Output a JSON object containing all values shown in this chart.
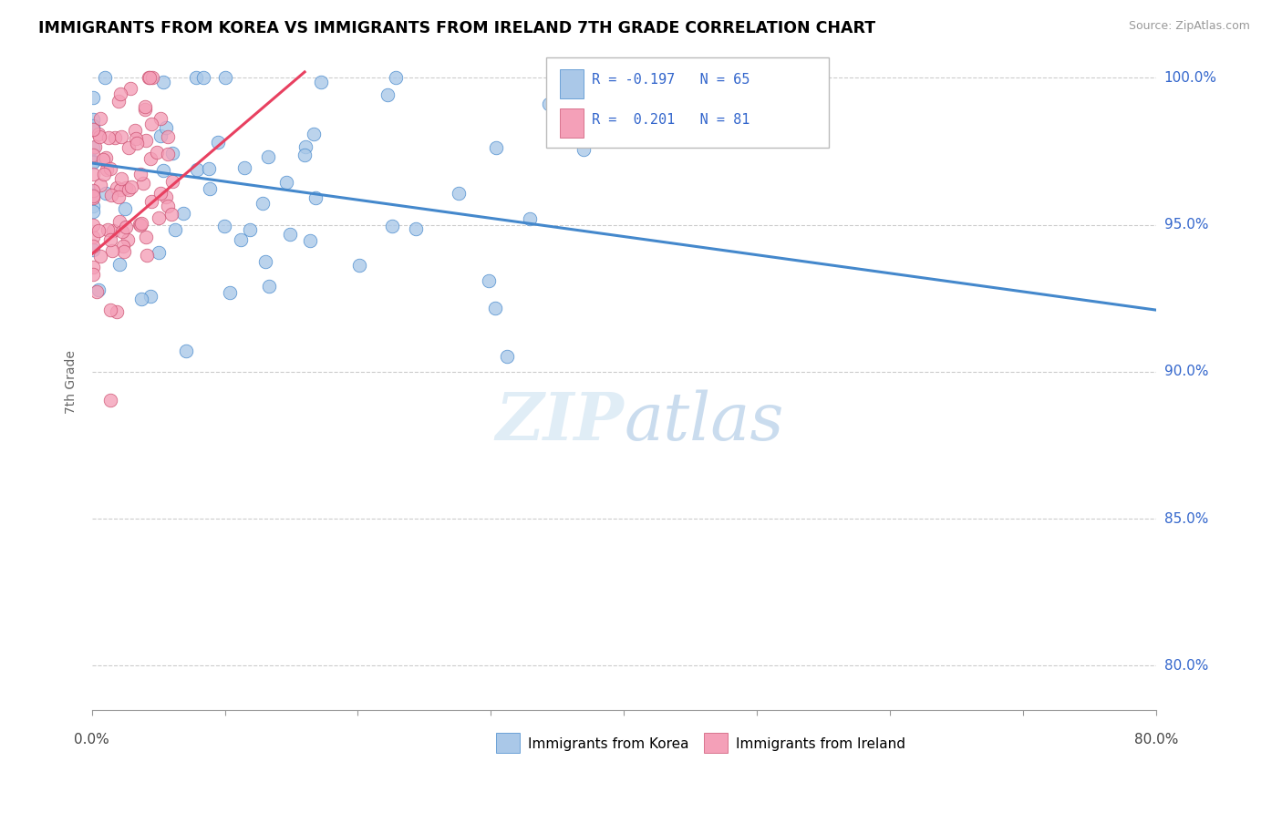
{
  "title": "IMMIGRANTS FROM KOREA VS IMMIGRANTS FROM IRELAND 7TH GRADE CORRELATION CHART",
  "source": "Source: ZipAtlas.com",
  "ylabel": "7th Grade",
  "ytick_labels": [
    "80.0%",
    "85.0%",
    "90.0%",
    "95.0%",
    "100.0%"
  ],
  "ytick_values": [
    0.8,
    0.85,
    0.9,
    0.95,
    1.0
  ],
  "xlim": [
    0.0,
    0.8
  ],
  "ylim": [
    0.785,
    1.008
  ],
  "korea_color": "#aac8e8",
  "ireland_color": "#f4a0b8",
  "korea_line_color": "#4488cc",
  "ireland_line_color": "#e84060",
  "watermark_zip": "ZIP",
  "watermark_atlas": "atlas",
  "legend_korea": "R = -0.197   N = 65",
  "legend_ireland": "R =  0.201   N = 81",
  "bottom_legend_korea": "Immigrants from Korea",
  "bottom_legend_ireland": "Immigrants from Ireland",
  "korea_trend_x0": 0.0,
  "korea_trend_y0": 0.971,
  "korea_trend_x1": 0.8,
  "korea_trend_y1": 0.921,
  "ireland_trend_x0": 0.0,
  "ireland_trend_y0": 0.94,
  "ireland_trend_x1": 0.16,
  "ireland_trend_y1": 1.002
}
